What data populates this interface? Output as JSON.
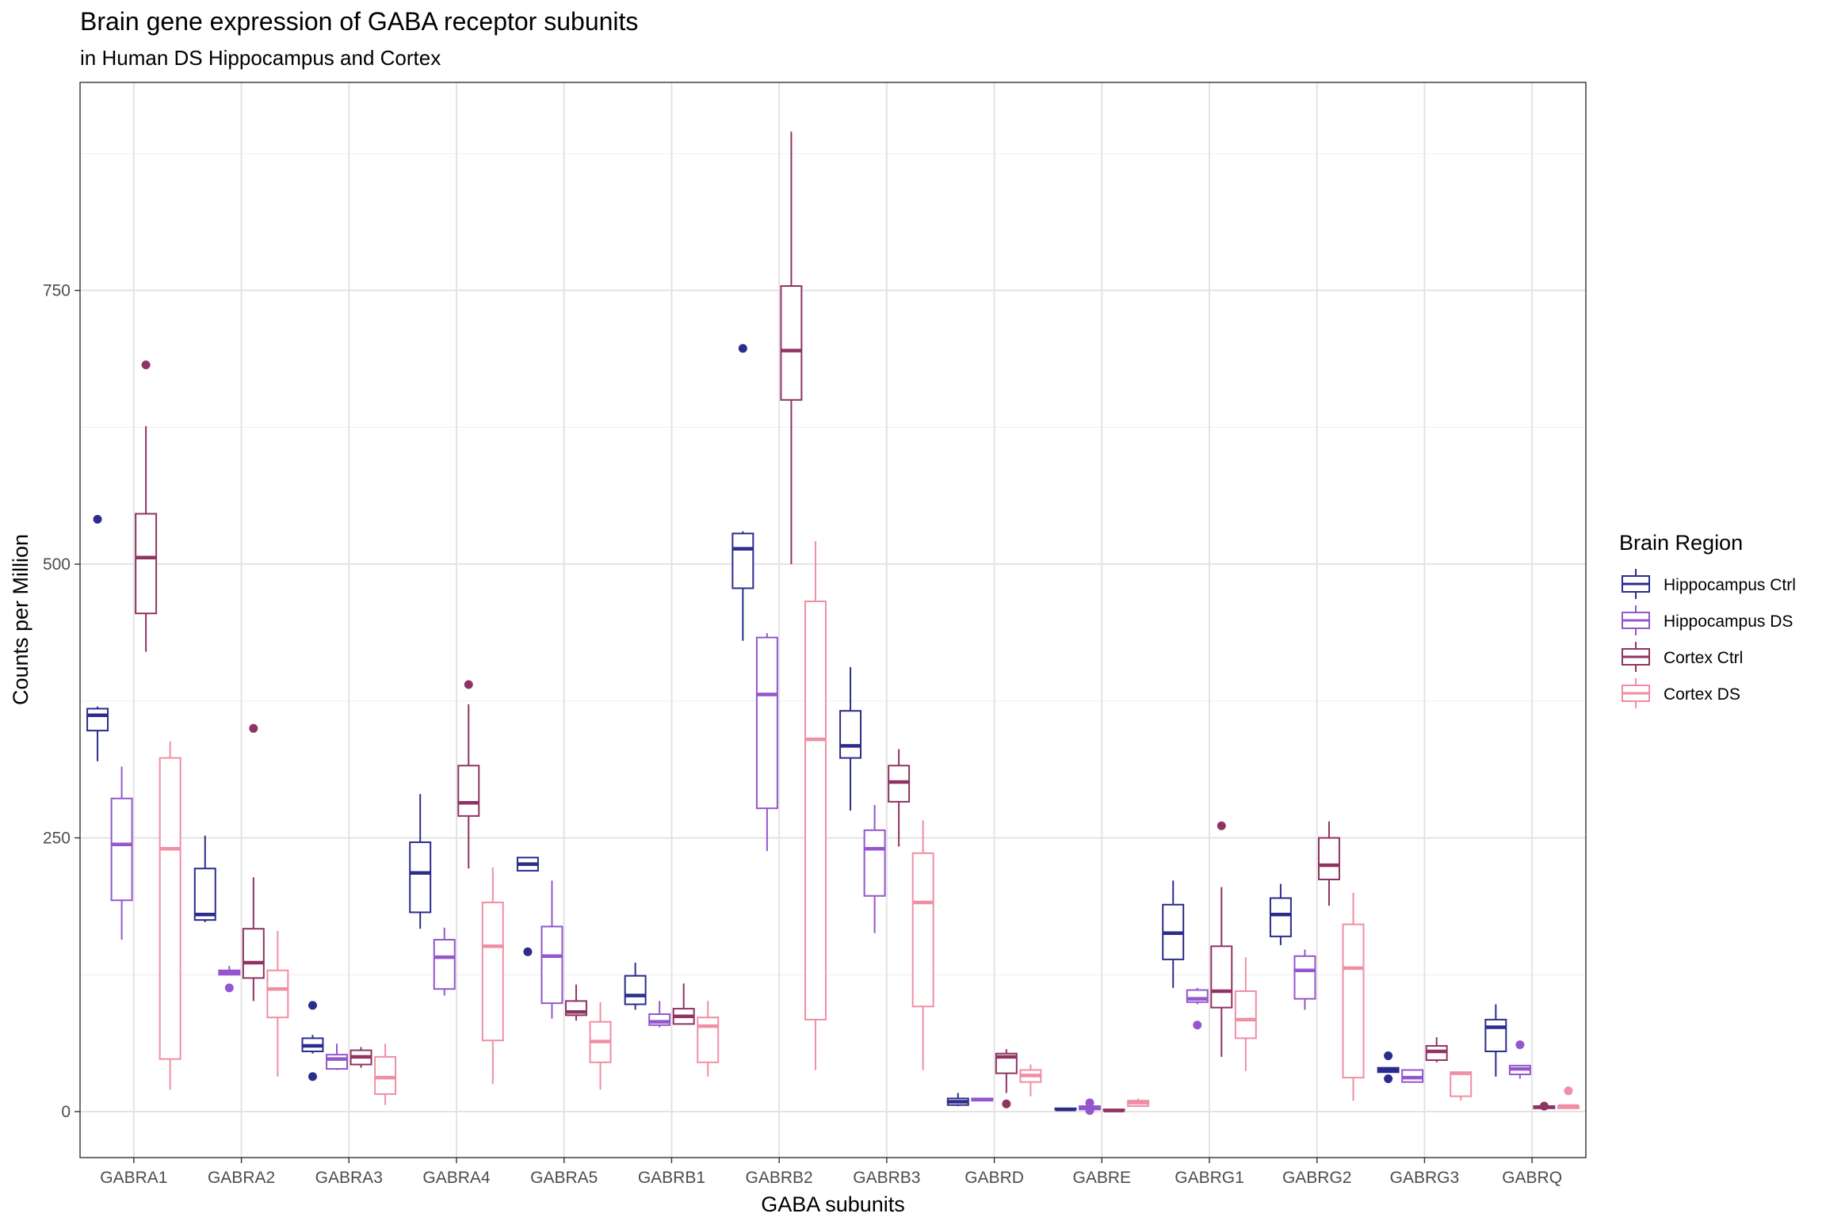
{
  "chart_data": {
    "type": "box",
    "title": "Brain gene expression of GABA receptor subunits",
    "subtitle": "in Human DS Hippocampus and Cortex",
    "xlabel": "GABA subunits",
    "ylabel": "Counts per Million",
    "ylim": [
      -42,
      940
    ],
    "yticks": [
      0,
      250,
      500,
      750
    ],
    "grid": true,
    "legend_title": "Brain Region",
    "legend_position": "right",
    "categories": [
      "GABRA1",
      "GABRA2",
      "GABRA3",
      "GABRA4",
      "GABRA5",
      "GABRB1",
      "GABRB2",
      "GABRB3",
      "GABRD",
      "GABRE",
      "GABRG1",
      "GABRG2",
      "GABRG3",
      "GABRQ"
    ],
    "series": [
      {
        "name": "Hippocampus Ctrl",
        "color": "#2b2c8c",
        "boxes": [
          {
            "min": 320,
            "q1": 348,
            "median": 362,
            "q3": 368,
            "max": 370,
            "outliers": [
              541
            ]
          },
          {
            "min": 173,
            "q1": 175,
            "median": 180,
            "q3": 222,
            "max": 252,
            "outliers": []
          },
          {
            "min": 53,
            "q1": 55,
            "median": 60,
            "q3": 67,
            "max": 70,
            "outliers": [
              97,
              32
            ]
          },
          {
            "min": 167,
            "q1": 182,
            "median": 218,
            "q3": 246,
            "max": 290,
            "outliers": []
          },
          {
            "min": 220,
            "q1": 220,
            "median": 226,
            "q3": 232,
            "max": 232,
            "outliers": [
              146
            ]
          },
          {
            "min": 93,
            "q1": 98,
            "median": 106,
            "q3": 124,
            "max": 136,
            "outliers": []
          },
          {
            "min": 430,
            "q1": 478,
            "median": 514,
            "q3": 528,
            "max": 530,
            "outliers": [
              697
            ]
          },
          {
            "min": 275,
            "q1": 323,
            "median": 334,
            "q3": 366,
            "max": 406,
            "outliers": []
          },
          {
            "min": 5,
            "q1": 6,
            "median": 9,
            "q3": 12,
            "max": 17,
            "outliers": []
          },
          {
            "min": 2,
            "q1": 2,
            "median": 2,
            "q3": 3,
            "max": 3,
            "outliers": []
          },
          {
            "min": 113,
            "q1": 139,
            "median": 163,
            "q3": 189,
            "max": 211,
            "outliers": []
          },
          {
            "min": 152,
            "q1": 160,
            "median": 180,
            "q3": 195,
            "max": 208,
            "outliers": []
          },
          {
            "min": 36,
            "q1": 36,
            "median": 38,
            "q3": 40,
            "max": 40,
            "outliers": [
              51,
              30
            ]
          },
          {
            "min": 32,
            "q1": 55,
            "median": 77,
            "q3": 84,
            "max": 98,
            "outliers": []
          }
        ]
      },
      {
        "name": "Hippocampus DS",
        "color": "#9456cc",
        "boxes": [
          {
            "min": 157,
            "q1": 193,
            "median": 244,
            "q3": 286,
            "max": 315,
            "outliers": []
          },
          {
            "min": 125,
            "q1": 125,
            "median": 127,
            "q3": 129,
            "max": 133,
            "outliers": [
              113
            ]
          },
          {
            "min": 38,
            "q1": 39,
            "median": 48,
            "q3": 52,
            "max": 62,
            "outliers": []
          },
          {
            "min": 106,
            "q1": 112,
            "median": 141,
            "q3": 157,
            "max": 168,
            "outliers": []
          },
          {
            "min": 85,
            "q1": 99,
            "median": 142,
            "q3": 169,
            "max": 211,
            "outliers": []
          },
          {
            "min": 77,
            "q1": 79,
            "median": 82,
            "q3": 89,
            "max": 101,
            "outliers": []
          },
          {
            "min": 238,
            "q1": 277,
            "median": 381,
            "q3": 433,
            "max": 437,
            "outliers": []
          },
          {
            "min": 163,
            "q1": 197,
            "median": 240,
            "q3": 257,
            "max": 280,
            "outliers": []
          },
          {
            "min": 10,
            "q1": 10,
            "median": 11,
            "q3": 12,
            "max": 12,
            "outliers": []
          },
          {
            "min": 1,
            "q1": 2,
            "median": 3,
            "q3": 5,
            "max": 6,
            "outliers": [
              8,
              1
            ]
          },
          {
            "min": 98,
            "q1": 100,
            "median": 103,
            "q3": 111,
            "max": 113,
            "outliers": [
              79
            ]
          },
          {
            "min": 93,
            "q1": 103,
            "median": 129,
            "q3": 142,
            "max": 148,
            "outliers": []
          },
          {
            "min": 27,
            "q1": 27,
            "median": 31,
            "q3": 38,
            "max": 38,
            "outliers": []
          },
          {
            "min": 30,
            "q1": 34,
            "median": 39,
            "q3": 42,
            "max": 42,
            "outliers": [
              61
            ]
          }
        ]
      },
      {
        "name": "Cortex Ctrl",
        "color": "#8f3363",
        "boxes": [
          {
            "min": 420,
            "q1": 455,
            "median": 506,
            "q3": 546,
            "max": 626,
            "outliers": [
              682
            ]
          },
          {
            "min": 101,
            "q1": 122,
            "median": 136,
            "q3": 167,
            "max": 214,
            "outliers": [
              350
            ]
          },
          {
            "min": 40,
            "q1": 43,
            "median": 50,
            "q3": 56,
            "max": 59,
            "outliers": []
          },
          {
            "min": 222,
            "q1": 270,
            "median": 282,
            "q3": 316,
            "max": 372,
            "outliers": [
              390
            ]
          },
          {
            "min": 83,
            "q1": 88,
            "median": 91,
            "q3": 101,
            "max": 116,
            "outliers": []
          },
          {
            "min": 80,
            "q1": 80,
            "median": 87,
            "q3": 94,
            "max": 117,
            "outliers": []
          },
          {
            "min": 500,
            "q1": 650,
            "median": 695,
            "q3": 754,
            "max": 895,
            "outliers": []
          },
          {
            "min": 242,
            "q1": 283,
            "median": 301,
            "q3": 316,
            "max": 331,
            "outliers": []
          },
          {
            "min": 17,
            "q1": 35,
            "median": 50,
            "q3": 53,
            "max": 57,
            "outliers": [
              7
            ]
          },
          {
            "min": 1,
            "q1": 1,
            "median": 1,
            "q3": 2,
            "max": 2,
            "outliers": []
          },
          {
            "min": 50,
            "q1": 95,
            "median": 110,
            "q3": 151,
            "max": 205,
            "outliers": [
              261
            ]
          },
          {
            "min": 188,
            "q1": 212,
            "median": 225,
            "q3": 250,
            "max": 265,
            "outliers": []
          },
          {
            "min": 45,
            "q1": 47,
            "median": 55,
            "q3": 60,
            "max": 68,
            "outliers": []
          },
          {
            "min": 3,
            "q1": 3,
            "median": 4,
            "q3": 5,
            "max": 5,
            "outliers": [
              5
            ]
          }
        ]
      },
      {
        "name": "Cortex DS",
        "color": "#f08ea4",
        "boxes": [
          {
            "min": 20,
            "q1": 48,
            "median": 240,
            "q3": 323,
            "max": 338,
            "outliers": []
          },
          {
            "min": 32,
            "q1": 86,
            "median": 112,
            "q3": 129,
            "max": 165,
            "outliers": []
          },
          {
            "min": 6,
            "q1": 16,
            "median": 31,
            "q3": 50,
            "max": 62,
            "outliers": []
          },
          {
            "min": 25,
            "q1": 65,
            "median": 151,
            "q3": 191,
            "max": 223,
            "outliers": []
          },
          {
            "min": 20,
            "q1": 45,
            "median": 64,
            "q3": 82,
            "max": 100,
            "outliers": []
          },
          {
            "min": 32,
            "q1": 45,
            "median": 78,
            "q3": 86,
            "max": 101,
            "outliers": []
          },
          {
            "min": 38,
            "q1": 84,
            "median": 340,
            "q3": 466,
            "max": 521,
            "outliers": []
          },
          {
            "min": 38,
            "q1": 96,
            "median": 191,
            "q3": 236,
            "max": 266,
            "outliers": []
          },
          {
            "min": 14,
            "q1": 27,
            "median": 33,
            "q3": 38,
            "max": 43,
            "outliers": []
          },
          {
            "min": 5,
            "q1": 5,
            "median": 8,
            "q3": 10,
            "max": 12,
            "outliers": []
          },
          {
            "min": 37,
            "q1": 67,
            "median": 84,
            "q3": 110,
            "max": 141,
            "outliers": []
          },
          {
            "min": 10,
            "q1": 31,
            "median": 131,
            "q3": 171,
            "max": 200,
            "outliers": []
          },
          {
            "min": 10,
            "q1": 14,
            "median": 35,
            "q3": 36,
            "max": 36,
            "outliers": []
          },
          {
            "min": 3,
            "q1": 3,
            "median": 5,
            "q3": 5,
            "max": 5,
            "outliers": [
              19
            ]
          }
        ]
      }
    ]
  }
}
